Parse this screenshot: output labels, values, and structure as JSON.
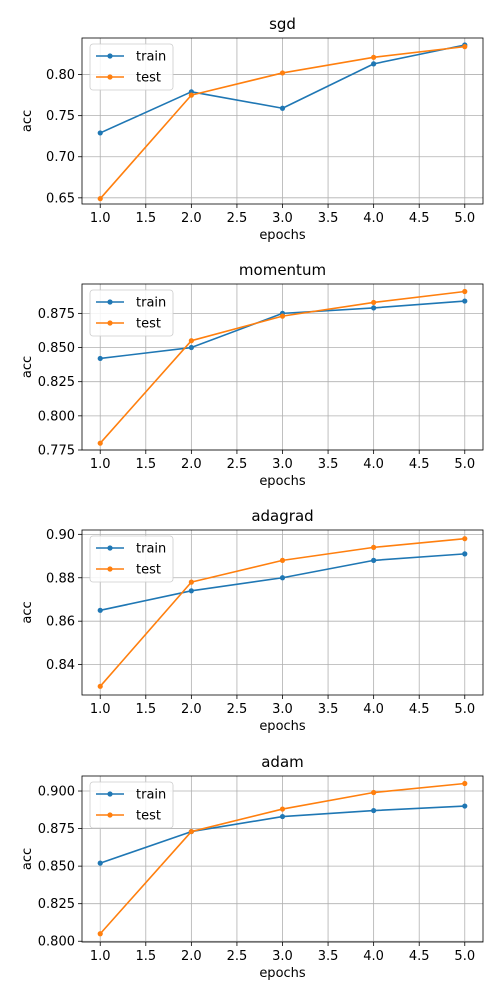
{
  "chart_data": [
    {
      "type": "line",
      "title": "sgd",
      "xlabel": "epochs",
      "ylabel": "acc",
      "x": [
        1,
        2,
        3,
        4,
        5
      ],
      "xlim": [
        0.8,
        5.2
      ],
      "ylim": [
        0.6425,
        0.8445
      ],
      "xticks": [
        1.0,
        1.5,
        2.0,
        2.5,
        3.0,
        3.5,
        4.0,
        4.5,
        5.0
      ],
      "xtick_labels": [
        "1.0",
        "1.5",
        "2.0",
        "2.5",
        "3.0",
        "3.5",
        "4.0",
        "4.5",
        "5.0"
      ],
      "yticks": [
        0.65,
        0.7,
        0.75,
        0.8
      ],
      "ytick_labels": [
        "0.65",
        "0.70",
        "0.75",
        "0.80"
      ],
      "grid": true,
      "legend": "upper-left",
      "series": [
        {
          "name": "train",
          "color": "#1f77b4",
          "values": [
            0.729,
            0.779,
            0.759,
            0.813,
            0.836
          ]
        },
        {
          "name": "test",
          "color": "#ff7f0e",
          "values": [
            0.649,
            0.775,
            0.802,
            0.821,
            0.834
          ]
        }
      ]
    },
    {
      "type": "line",
      "title": "momentum",
      "xlabel": "epochs",
      "ylabel": "acc",
      "x": [
        1,
        2,
        3,
        4,
        5
      ],
      "xlim": [
        0.8,
        5.2
      ],
      "ylim": [
        0.775,
        0.8965
      ],
      "xticks": [
        1.0,
        1.5,
        2.0,
        2.5,
        3.0,
        3.5,
        4.0,
        4.5,
        5.0
      ],
      "xtick_labels": [
        "1.0",
        "1.5",
        "2.0",
        "2.5",
        "3.0",
        "3.5",
        "4.0",
        "4.5",
        "5.0"
      ],
      "yticks": [
        0.775,
        0.8,
        0.825,
        0.85,
        0.875
      ],
      "ytick_labels": [
        "0.775",
        "0.800",
        "0.825",
        "0.850",
        "0.875"
      ],
      "grid": true,
      "legend": "upper-left",
      "series": [
        {
          "name": "train",
          "color": "#1f77b4",
          "values": [
            0.842,
            0.85,
            0.875,
            0.879,
            0.884
          ]
        },
        {
          "name": "test",
          "color": "#ff7f0e",
          "values": [
            0.78,
            0.855,
            0.873,
            0.883,
            0.891
          ]
        }
      ]
    },
    {
      "type": "line",
      "title": "adagrad",
      "xlabel": "epochs",
      "ylabel": "acc",
      "x": [
        1,
        2,
        3,
        4,
        5
      ],
      "xlim": [
        0.8,
        5.2
      ],
      "ylim": [
        0.826,
        0.902
      ],
      "xticks": [
        1.0,
        1.5,
        2.0,
        2.5,
        3.0,
        3.5,
        4.0,
        4.5,
        5.0
      ],
      "xtick_labels": [
        "1.0",
        "1.5",
        "2.0",
        "2.5",
        "3.0",
        "3.5",
        "4.0",
        "4.5",
        "5.0"
      ],
      "yticks": [
        0.84,
        0.86,
        0.88,
        0.9
      ],
      "ytick_labels": [
        "0.84",
        "0.86",
        "0.88",
        "0.90"
      ],
      "grid": true,
      "legend": "upper-left",
      "series": [
        {
          "name": "train",
          "color": "#1f77b4",
          "values": [
            0.865,
            0.874,
            0.88,
            0.888,
            0.891
          ]
        },
        {
          "name": "test",
          "color": "#ff7f0e",
          "values": [
            0.83,
            0.878,
            0.888,
            0.894,
            0.898
          ]
        }
      ]
    },
    {
      "type": "line",
      "title": "adam",
      "xlabel": "epochs",
      "ylabel": "acc",
      "x": [
        1,
        2,
        3,
        4,
        5
      ],
      "xlim": [
        0.8,
        5.2
      ],
      "ylim": [
        0.7995,
        0.91
      ],
      "xticks": [
        1.0,
        1.5,
        2.0,
        2.5,
        3.0,
        3.5,
        4.0,
        4.5,
        5.0
      ],
      "xtick_labels": [
        "1.0",
        "1.5",
        "2.0",
        "2.5",
        "3.0",
        "3.5",
        "4.0",
        "4.5",
        "5.0"
      ],
      "yticks": [
        0.8,
        0.825,
        0.85,
        0.875,
        0.9
      ],
      "ytick_labels": [
        "0.800",
        "0.825",
        "0.850",
        "0.875",
        "0.900"
      ],
      "grid": true,
      "legend": "upper-left",
      "series": [
        {
          "name": "train",
          "color": "#1f77b4",
          "values": [
            0.852,
            0.873,
            0.883,
            0.887,
            0.89
          ]
        },
        {
          "name": "test",
          "color": "#ff7f0e",
          "values": [
            0.805,
            0.873,
            0.888,
            0.899,
            0.905
          ]
        }
      ]
    }
  ]
}
